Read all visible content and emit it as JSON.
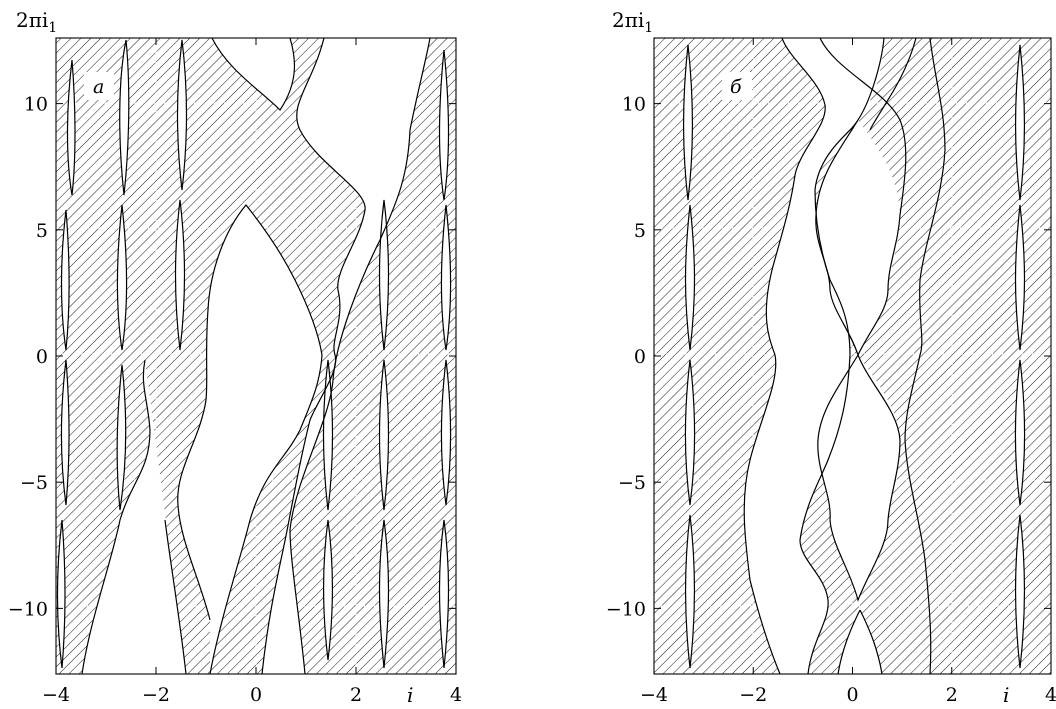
{
  "chart_data": [
    {
      "type": "area",
      "panel_label": "a",
      "ylabel_prefix": "2πi",
      "ylabel_sub": "1",
      "xlabel": "i",
      "xlim": [
        -4,
        4
      ],
      "ylim": [
        -12.6,
        12.6
      ],
      "x_ticks": [
        -4,
        -2,
        0,
        2,
        4
      ],
      "x_tick_labels": [
        "−4",
        "−2",
        "0",
        "2",
        "4"
      ],
      "y_ticks": [
        10,
        5,
        0,
        -5,
        -10
      ],
      "y_tick_labels": [
        "10",
        "5",
        "0",
        "−5",
        "−10"
      ],
      "shading": "hatched",
      "grid": true
    },
    {
      "type": "area",
      "panel_label": "б",
      "ylabel_prefix": "2πi",
      "ylabel_sub": "1",
      "xlabel": "i",
      "xlim": [
        -4,
        4
      ],
      "ylim": [
        -12.6,
        12.6
      ],
      "x_ticks": [
        -4,
        -2,
        0,
        2,
        4
      ],
      "x_tick_labels": [
        "−4",
        "−2",
        "0",
        "2",
        "4"
      ],
      "y_ticks": [
        10,
        5,
        0,
        -5,
        -10
      ],
      "y_tick_labels": [
        "10",
        "5",
        "0",
        "−5",
        "−10"
      ],
      "shading": "hatched",
      "grid": true
    }
  ]
}
